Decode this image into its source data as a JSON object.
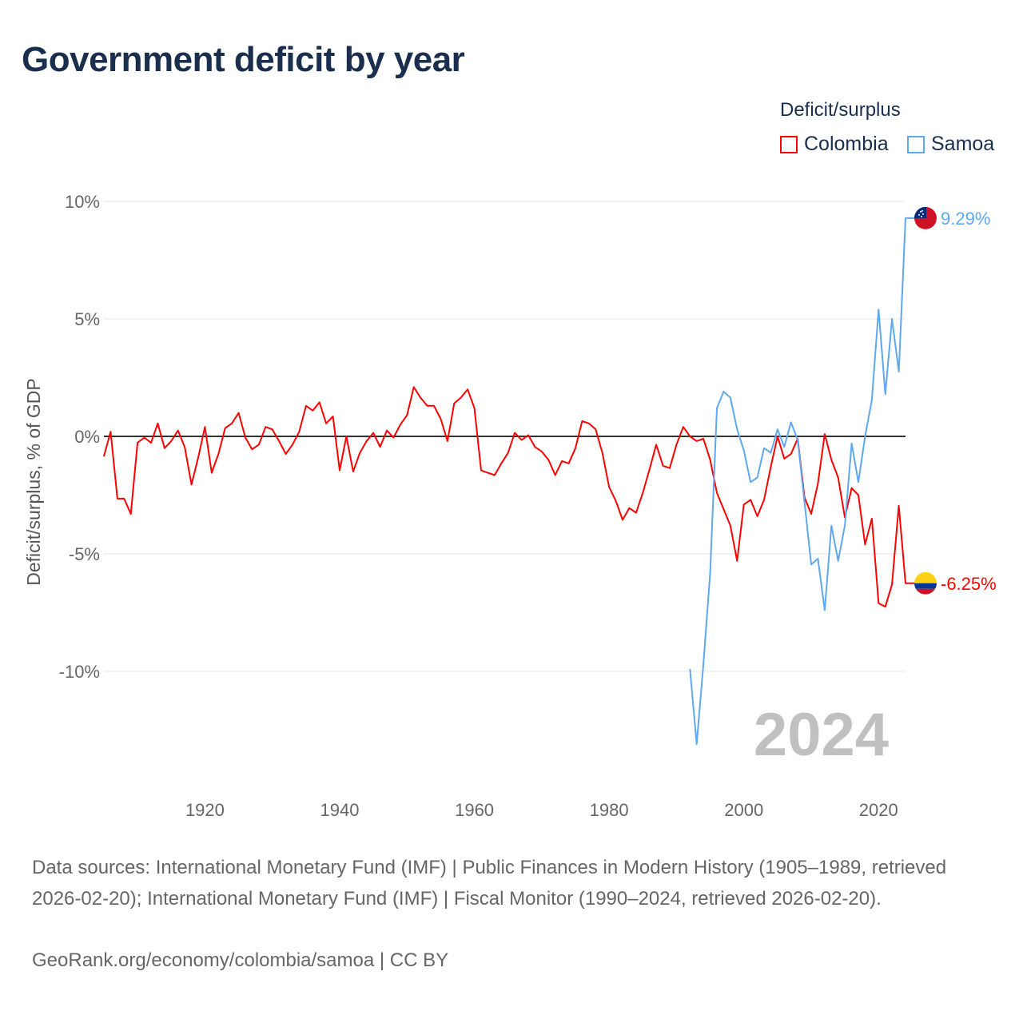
{
  "title": "Government deficit by year",
  "legend": {
    "title": "Deficit/surplus",
    "items": [
      {
        "label": "Colombia",
        "color": "#ff0000"
      },
      {
        "label": "Samoa",
        "color": "#5ea8ee"
      }
    ]
  },
  "year_watermark": "2024",
  "footer": {
    "sources": "Data sources: International Monetary Fund (IMF) | Public Finances in Modern History (1905–1989, retrieved 2026-02-20); International Monetary Fund (IMF) | Fiscal Monitor (1990–2024, retrieved 2026-02-20).",
    "attribution": "GeoRank.org/economy/colombia/samoa | CC BY"
  },
  "chart_data": {
    "type": "line",
    "title": "Government deficit by year",
    "xlabel": "",
    "ylabel": "Deficit/surplus, % of GDP",
    "xlim": [
      1905,
      2024
    ],
    "ylim": [
      -14,
      10.5
    ],
    "xticks": [
      1920,
      1940,
      1960,
      1980,
      2000,
      2020
    ],
    "yticks": [
      10,
      5,
      0,
      -5,
      -10
    ],
    "ytick_labels": [
      "10%",
      "5%",
      "0%",
      "-5%",
      "-10%"
    ],
    "grid": true,
    "legend_position": "top-right",
    "series": [
      {
        "name": "Colombia",
        "color": "#ff0000",
        "start_year": 1905,
        "end_label": "-6.25%",
        "flag": "colombia",
        "values": [
          -0.85,
          0.2,
          -2.65,
          -2.65,
          -3.3,
          -0.27,
          -0.05,
          -0.27,
          0.55,
          -0.5,
          -0.2,
          0.25,
          -0.45,
          -2.05,
          -0.9,
          0.4,
          -1.55,
          -0.75,
          0.35,
          0.55,
          1.0,
          -0.05,
          -0.55,
          -0.35,
          0.4,
          0.3,
          -0.2,
          -0.75,
          -0.35,
          0.2,
          1.3,
          1.1,
          1.45,
          0.55,
          0.85,
          -1.45,
          0,
          -1.5,
          -0.7,
          -0.2,
          0.15,
          -0.45,
          0.25,
          -0.05,
          0.5,
          0.9,
          2.1,
          1.65,
          1.3,
          1.3,
          0.75,
          -0.2,
          1.4,
          1.65,
          2.0,
          1.2,
          -1.45,
          -1.55,
          -1.65,
          -1.15,
          -0.7,
          0.15,
          -0.15,
          0.05,
          -0.45,
          -0.65,
          -1.0,
          -1.65,
          -1.05,
          -1.15,
          -0.5,
          0.65,
          0.55,
          0.3,
          -0.7,
          -2.15,
          -2.75,
          -3.55,
          -3.05,
          -3.25,
          -2.4,
          -1.4,
          -0.35,
          -1.25,
          -1.35,
          -0.35,
          0.4,
          0.0,
          -0.2,
          -0.1,
          -1.0,
          -2.4,
          -3.1,
          -3.8,
          -5.3,
          -2.9,
          -2.7,
          -3.4,
          -2.7,
          -1.3,
          0.0,
          -0.95,
          -0.75,
          -0.1,
          -2.6,
          -3.3,
          -2.0,
          0.1,
          -1.0,
          -1.75,
          -3.45,
          -2.2,
          -2.5,
          -4.6,
          -3.5,
          -7.1,
          -7.25,
          -6.3,
          -2.95,
          -6.25
        ]
      },
      {
        "name": "Samoa",
        "color": "#5ea8ee",
        "start_year": 1992,
        "end_label": "9.29%",
        "flag": "samoa",
        "values": [
          -9.9,
          -13.1,
          -9.7,
          -5.8,
          1.2,
          1.9,
          1.65,
          0.3,
          -0.6,
          -1.95,
          -1.75,
          -0.5,
          -0.7,
          0.3,
          -0.45,
          0.6,
          -0.15,
          -2.8,
          -5.45,
          -5.2,
          -7.4,
          -3.8,
          -5.3,
          -3.8,
          -0.3,
          -1.95,
          0,
          1.55,
          5.4,
          1.8,
          5.0,
          2.75,
          9.29
        ]
      }
    ]
  }
}
